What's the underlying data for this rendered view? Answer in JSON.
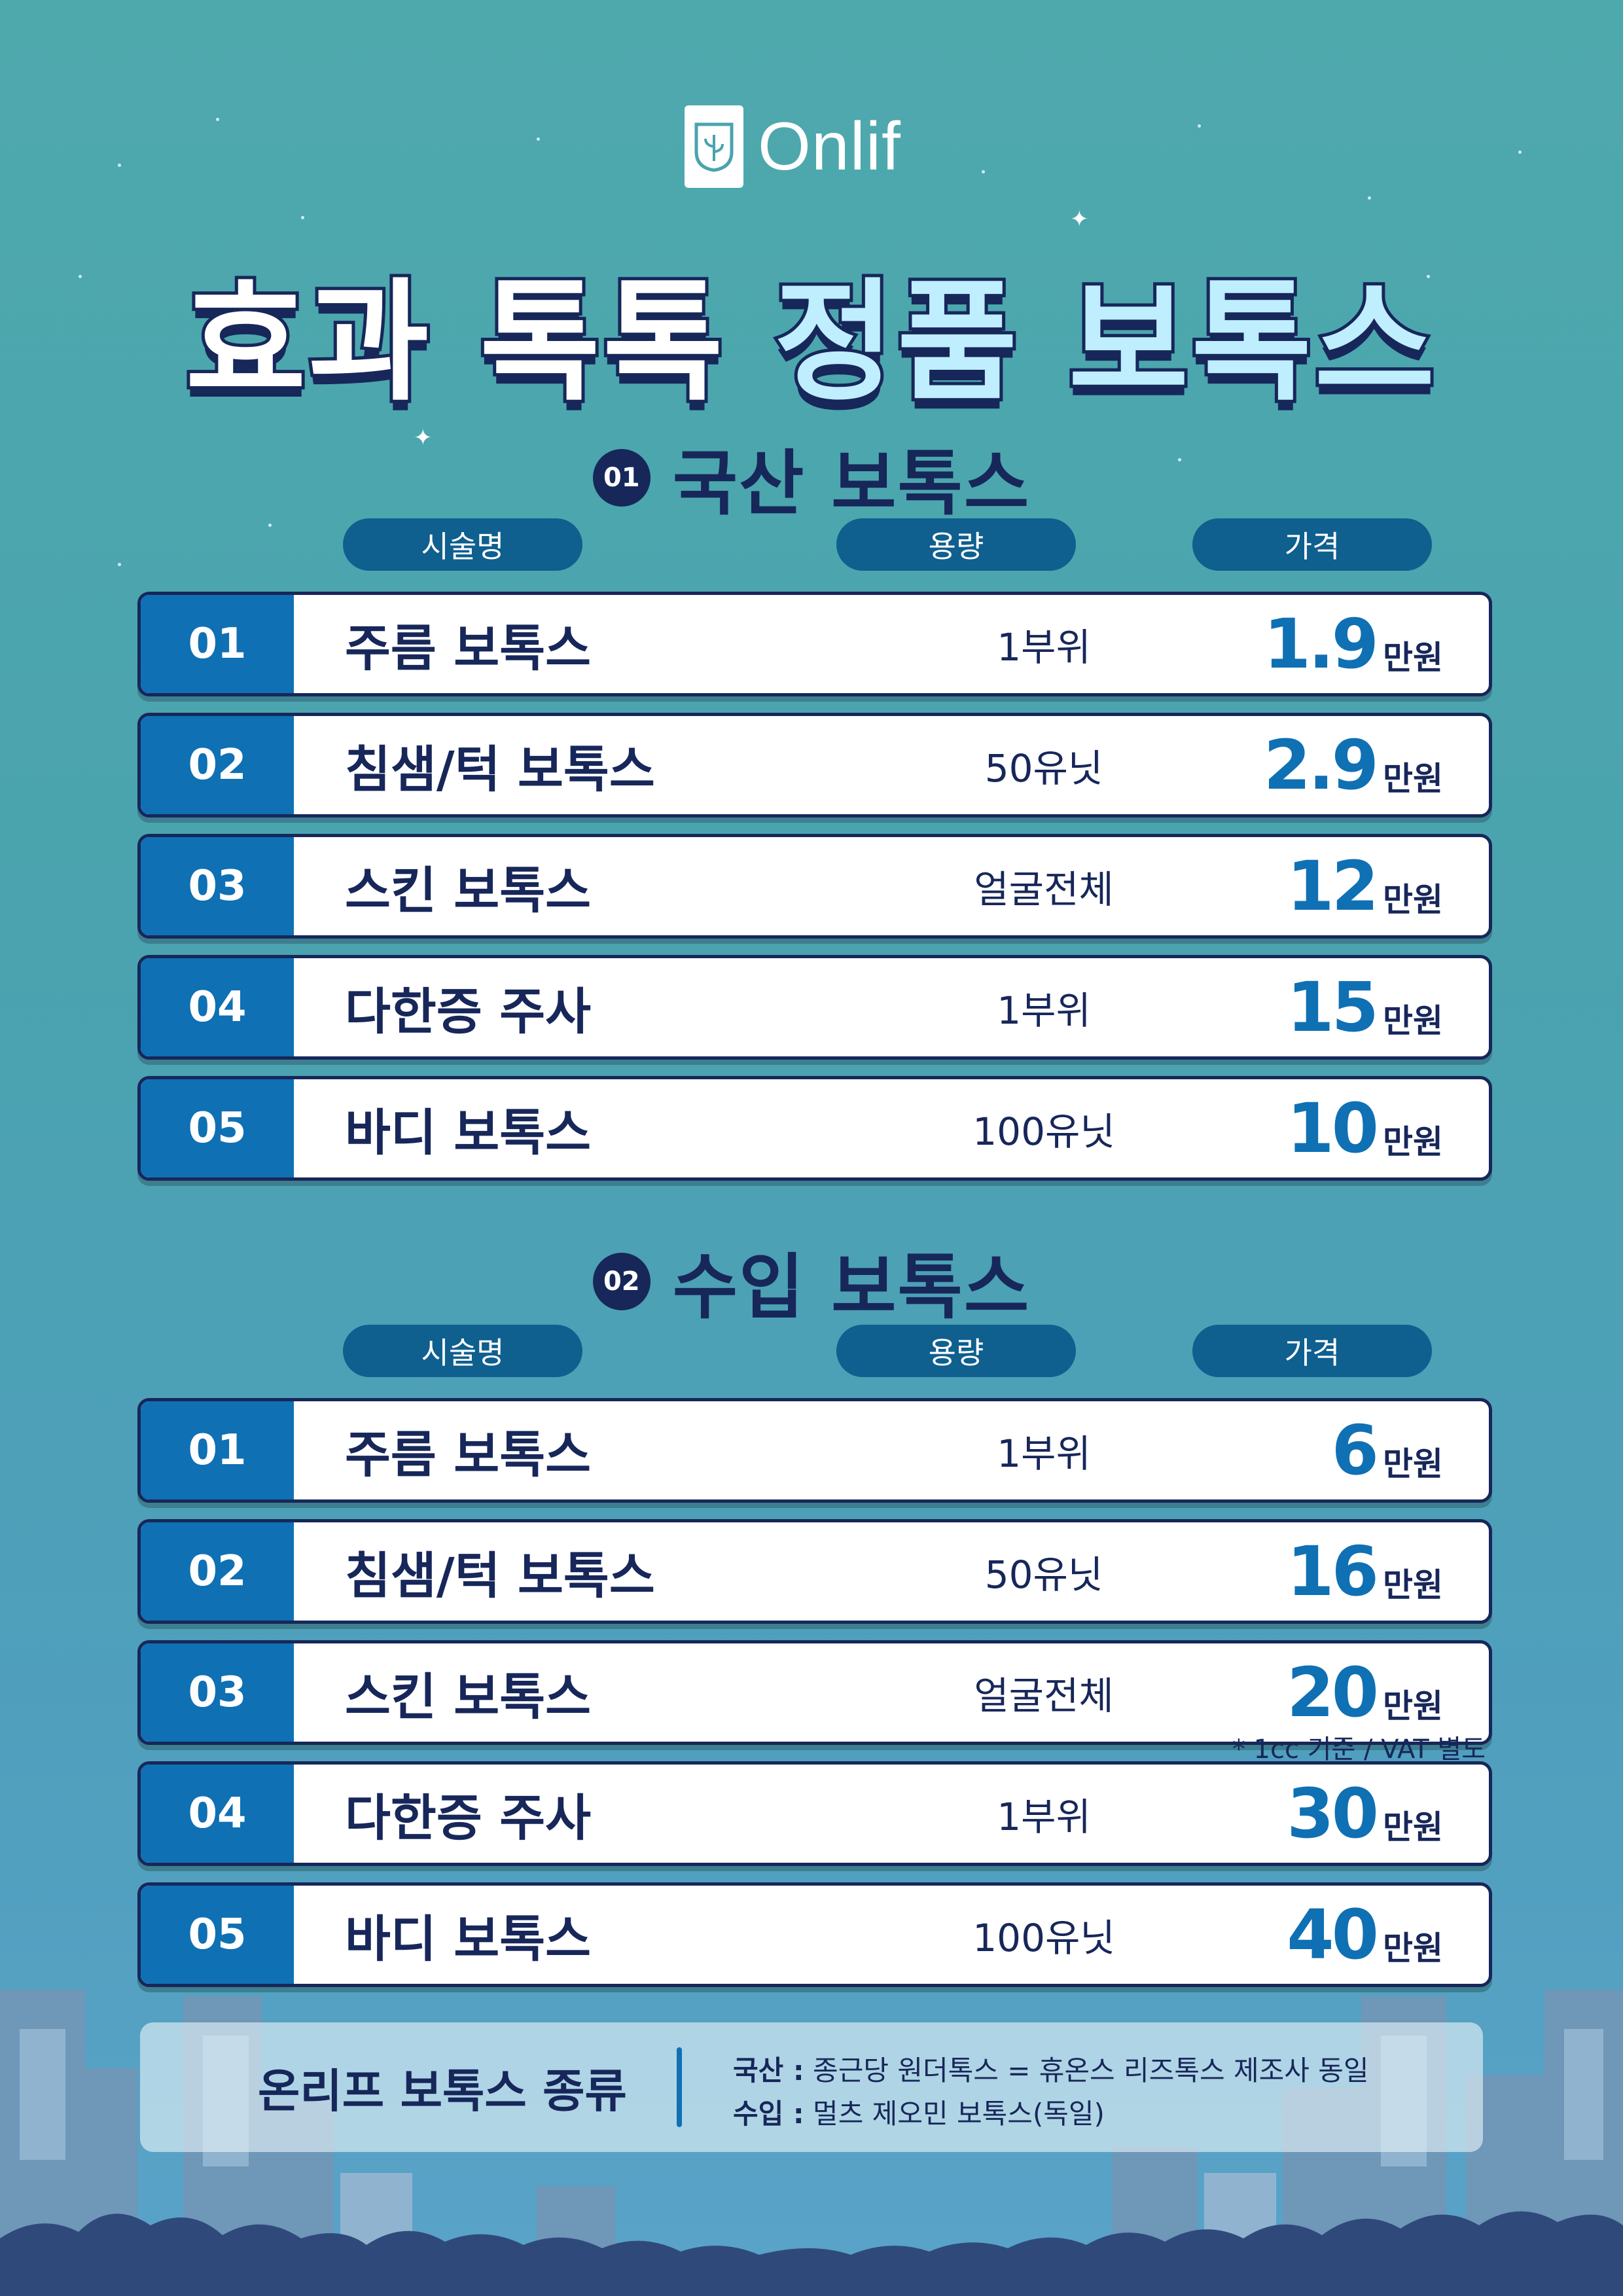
{
  "brand": {
    "logo_text": "Onlif"
  },
  "headline": {
    "part_a": "효과 톡톡 ",
    "part_b": "정품 ",
    "part_c": "보톡스"
  },
  "columns": {
    "name": "시술명",
    "volume": "용량",
    "price": "가격"
  },
  "sections": [
    {
      "number": "01",
      "title": "국산 보톡스",
      "rows": [
        {
          "num": "01",
          "name": "주름 보톡스",
          "volume": "1부위",
          "price": "1.9",
          "unit": "만원"
        },
        {
          "num": "02",
          "name": "침샘/턱 보톡스",
          "volume": "50유닛",
          "price": "2.9",
          "unit": "만원"
        },
        {
          "num": "03",
          "name": "스킨 보톡스",
          "volume": "얼굴전체",
          "price": "12",
          "unit": "만원"
        },
        {
          "num": "04",
          "name": "다한증 주사",
          "volume": "1부위",
          "price": "15",
          "unit": "만원"
        },
        {
          "num": "05",
          "name": "바디 보톡스",
          "volume": "100유닛",
          "price": "10",
          "unit": "만원"
        }
      ]
    },
    {
      "number": "02",
      "title": "수입 보톡스",
      "rows": [
        {
          "num": "01",
          "name": "주름 보톡스",
          "volume": "1부위",
          "price": "6",
          "unit": "만원"
        },
        {
          "num": "02",
          "name": "침샘/턱 보톡스",
          "volume": "50유닛",
          "price": "16",
          "unit": "만원"
        },
        {
          "num": "03",
          "name": "스킨 보톡스",
          "volume": "얼굴전체",
          "price": "20",
          "unit": "만원"
        },
        {
          "num": "04",
          "name": "다한증 주사",
          "volume": "1부위",
          "price": "30",
          "unit": "만원"
        },
        {
          "num": "05",
          "name": "바디 보톡스",
          "volume": "100유닛",
          "price": "40",
          "unit": "만원"
        }
      ]
    }
  ],
  "footnote": "* 1cc 기준 / VAT 별도",
  "info": {
    "title": "온리프 보톡스 종류",
    "lines": [
      {
        "label": "국산 :",
        "text": " 종근당 원더톡스 = 휴온스 리즈톡스 제조사 동일"
      },
      {
        "label": "수입 :",
        "text": " 멀츠 제오민 보톡스(독일)"
      }
    ]
  },
  "colors": {
    "navy": "#17275a",
    "blue": "#0f70b4",
    "pill": "#0f5f8f",
    "headline_light": "#bfeefe"
  }
}
